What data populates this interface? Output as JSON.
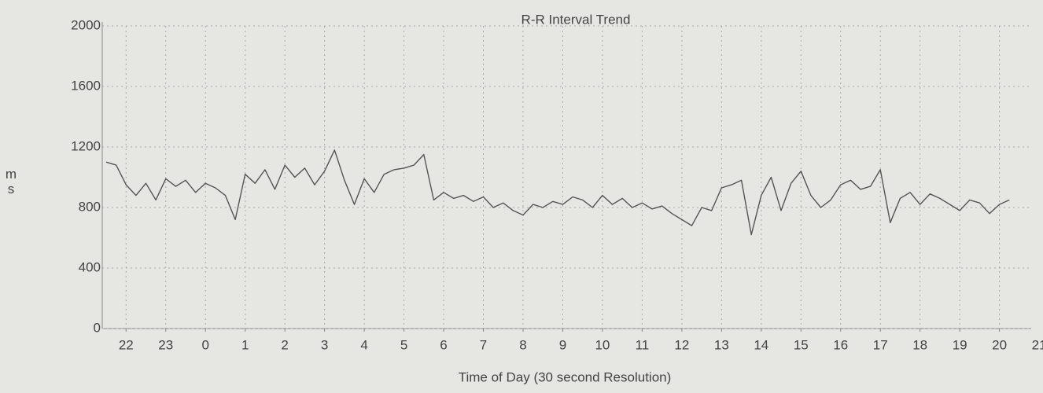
{
  "chart_data": {
    "type": "line",
    "title": "R-R Interval Trend",
    "xlabel": "Time of Day (30 second Resolution)",
    "ylabel": "ms",
    "x": [
      21.5,
      21.75,
      22,
      22.25,
      22.5,
      22.75,
      23,
      23.25,
      23.5,
      23.75,
      24,
      24.25,
      24.5,
      24.75,
      25,
      25.25,
      25.5,
      25.75,
      26,
      26.25,
      26.5,
      26.75,
      27,
      27.25,
      27.5,
      27.75,
      28,
      28.25,
      28.5,
      28.75,
      29,
      29.25,
      29.5,
      29.75,
      30,
      30.25,
      30.5,
      30.75,
      31,
      31.25,
      31.5,
      31.75,
      32,
      32.25,
      32.5,
      32.75,
      33,
      33.25,
      33.5,
      33.75,
      34,
      34.25,
      34.5,
      34.75,
      35,
      35.25,
      35.5,
      35.75,
      36,
      36.25,
      36.5,
      36.75,
      37,
      37.25,
      37.5,
      37.75,
      38,
      38.25,
      38.5,
      38.75,
      39,
      39.25,
      39.5,
      39.75,
      40,
      40.25,
      40.5,
      40.75,
      41,
      41.25,
      41.5,
      41.75,
      42,
      42.25,
      42.5,
      42.75,
      43,
      43.25,
      43.5,
      43.75,
      44,
      44.25
    ],
    "values": [
      1100,
      1080,
      950,
      880,
      960,
      850,
      990,
      940,
      980,
      900,
      960,
      930,
      880,
      720,
      1020,
      960,
      1050,
      920,
      1080,
      1000,
      1060,
      950,
      1040,
      1180,
      980,
      820,
      990,
      900,
      1020,
      1050,
      1060,
      1080,
      1150,
      850,
      900,
      860,
      880,
      840,
      870,
      800,
      830,
      780,
      750,
      820,
      800,
      840,
      820,
      870,
      850,
      800,
      880,
      820,
      860,
      800,
      830,
      790,
      810,
      760,
      720,
      680,
      800,
      780,
      930,
      950,
      980,
      620,
      880,
      1000,
      780,
      960,
      1040,
      880,
      800,
      850,
      950,
      980,
      920,
      940,
      1050,
      700,
      860,
      900,
      820,
      890,
      860,
      820,
      780,
      850,
      830,
      760,
      820,
      850
    ],
    "color": "#555555",
    "xlim": [
      21.4,
      44.8
    ],
    "xticks": [
      22,
      23,
      {
        "value": 24,
        "label": "0"
      },
      {
        "value": 25,
        "label": "1"
      },
      {
        "value": 26,
        "label": "2"
      },
      {
        "value": 27,
        "label": "3"
      },
      {
        "value": 28,
        "label": "4"
      },
      {
        "value": 29,
        "label": "5"
      },
      {
        "value": 30,
        "label": "6"
      },
      {
        "value": 31,
        "label": "7"
      },
      {
        "value": 32,
        "label": "8"
      },
      {
        "value": 33,
        "label": "9"
      },
      {
        "value": 34,
        "label": "10"
      },
      {
        "value": 35,
        "label": "11"
      },
      {
        "value": 36,
        "label": "12"
      },
      {
        "value": 37,
        "label": "13"
      },
      {
        "value": 38,
        "label": "14"
      },
      {
        "value": 39,
        "label": "15"
      },
      {
        "value": 40,
        "label": "16"
      },
      {
        "value": 41,
        "label": "17"
      },
      {
        "value": 42,
        "label": "18"
      },
      {
        "value": 43,
        "label": "19"
      },
      {
        "value": 44,
        "label": "20"
      },
      {
        "value": 45,
        "label": "21"
      }
    ],
    "ylim": [
      0,
      2000
    ],
    "yticks": [
      0,
      400,
      800,
      1200,
      1600,
      2000
    ],
    "grid": true
  }
}
